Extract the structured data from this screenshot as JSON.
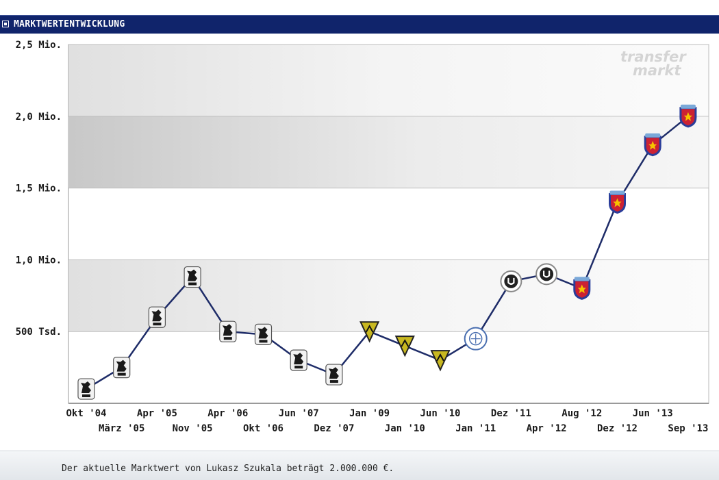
{
  "header": {
    "title": "MARKTWERTENTWICKLUNG"
  },
  "watermark": {
    "line1": "transfer",
    "line2": "markt"
  },
  "footer": {
    "text": "Der aktuelle Marktwert von Lukasz Szukala beträgt 2.000.000 €."
  },
  "colors": {
    "header": "#10246b",
    "line": "#1e2c68",
    "club_1860": "#1a1a1a",
    "club_aachen": "#c8b820",
    "club_u": "#222222",
    "club_steaua_blue": "#2a3d9a",
    "club_steaua_red": "#cc2233"
  },
  "chart_data": {
    "type": "line",
    "title": "",
    "xlabel": "",
    "ylabel": "",
    "ylim": [
      0,
      2500000
    ],
    "yticks": [
      {
        "value": 500000,
        "label": "500 Tsd."
      },
      {
        "value": 1000000,
        "label": "1,0 Mio."
      },
      {
        "value": 1500000,
        "label": "1,5 Mio."
      },
      {
        "value": 2000000,
        "label": "2,0 Mio."
      },
      {
        "value": 2500000,
        "label": "2,5 Mio."
      }
    ],
    "grid": true,
    "series": [
      {
        "points": [
          {
            "date": "Okt '04",
            "value": 100000,
            "club": "1860"
          },
          {
            "date": "März '05",
            "value": 250000,
            "club": "1860"
          },
          {
            "date": "Apr '05",
            "value": 600000,
            "club": "1860"
          },
          {
            "date": "Nov '05",
            "value": 880000,
            "club": "1860"
          },
          {
            "date": "Apr '06",
            "value": 500000,
            "club": "1860"
          },
          {
            "date": "Okt '06",
            "value": 480000,
            "club": "1860"
          },
          {
            "date": "Jun '07",
            "value": 300000,
            "club": "1860"
          },
          {
            "date": "Dez '07",
            "value": 200000,
            "club": "1860"
          },
          {
            "date": "Jan '09",
            "value": 500000,
            "club": "aachen"
          },
          {
            "date": "Jan '10",
            "value": 400000,
            "club": "aachen"
          },
          {
            "date": "Jun '10",
            "value": 300000,
            "club": "aachen"
          },
          {
            "date": "Jan '11",
            "value": 450000,
            "club": "ball"
          },
          {
            "date": "Dez '11",
            "value": 850000,
            "club": "u"
          },
          {
            "date": "Apr '12",
            "value": 900000,
            "club": "u"
          },
          {
            "date": "Aug '12",
            "value": 800000,
            "club": "steaua"
          },
          {
            "date": "Dez '12",
            "value": 1400000,
            "club": "steaua"
          },
          {
            "date": "Jun '13",
            "value": 1800000,
            "club": "steaua"
          },
          {
            "date": "Sep '13",
            "value": 2000000,
            "club": "steaua"
          }
        ]
      }
    ]
  }
}
